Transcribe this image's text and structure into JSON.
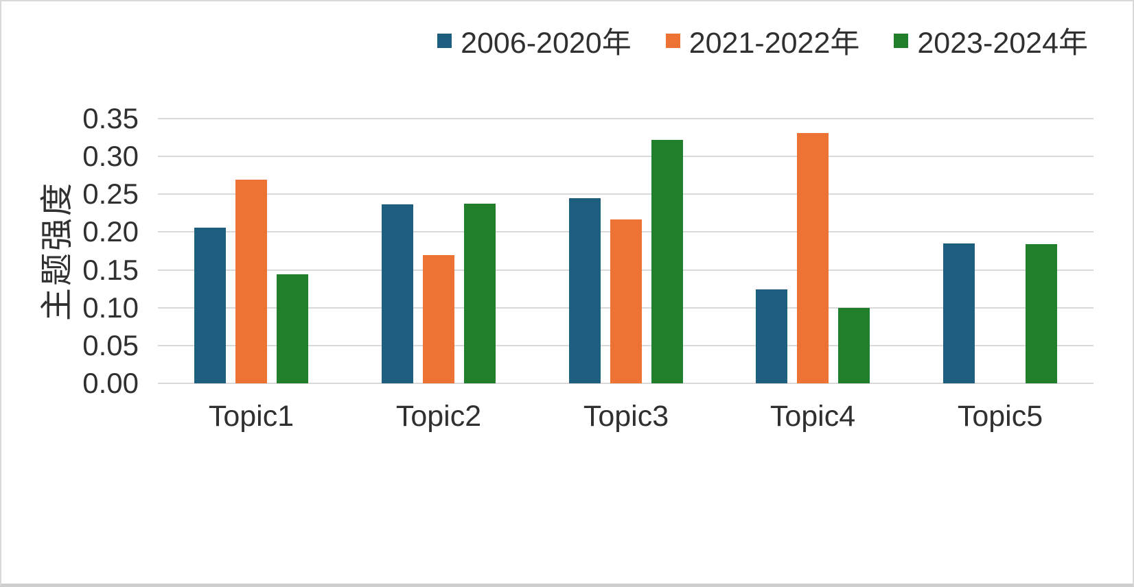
{
  "chart_data": {
    "type": "bar",
    "title": "",
    "xlabel": "",
    "ylabel": "主题强度",
    "categories": [
      "Topic1",
      "Topic2",
      "Topic3",
      "Topic4",
      "Topic5"
    ],
    "series": [
      {
        "name": "2006-2020年",
        "color": "#1E5E7E",
        "values": [
          0.206,
          0.237,
          0.245,
          0.124,
          0.185
        ]
      },
      {
        "name": "2021-2022年",
        "color": "#ED7334",
        "values": [
          0.269,
          0.17,
          0.217,
          0.331,
          0
        ]
      },
      {
        "name": "2023-2024年",
        "color": "#217F2B",
        "values": [
          0.144,
          0.238,
          0.322,
          0.1,
          0.184
        ]
      }
    ],
    "ylim": [
      0,
      0.35
    ],
    "ytick_step": 0.05,
    "ytick_labels": [
      "0.00",
      "0.05",
      "0.10",
      "0.15",
      "0.20",
      "0.25",
      "0.30",
      "0.35"
    ],
    "grid": true,
    "legend_position": "top-right",
    "gridline_color": "#d9d9d9",
    "text_color": "#303030",
    "background_color": "#ffffff"
  }
}
